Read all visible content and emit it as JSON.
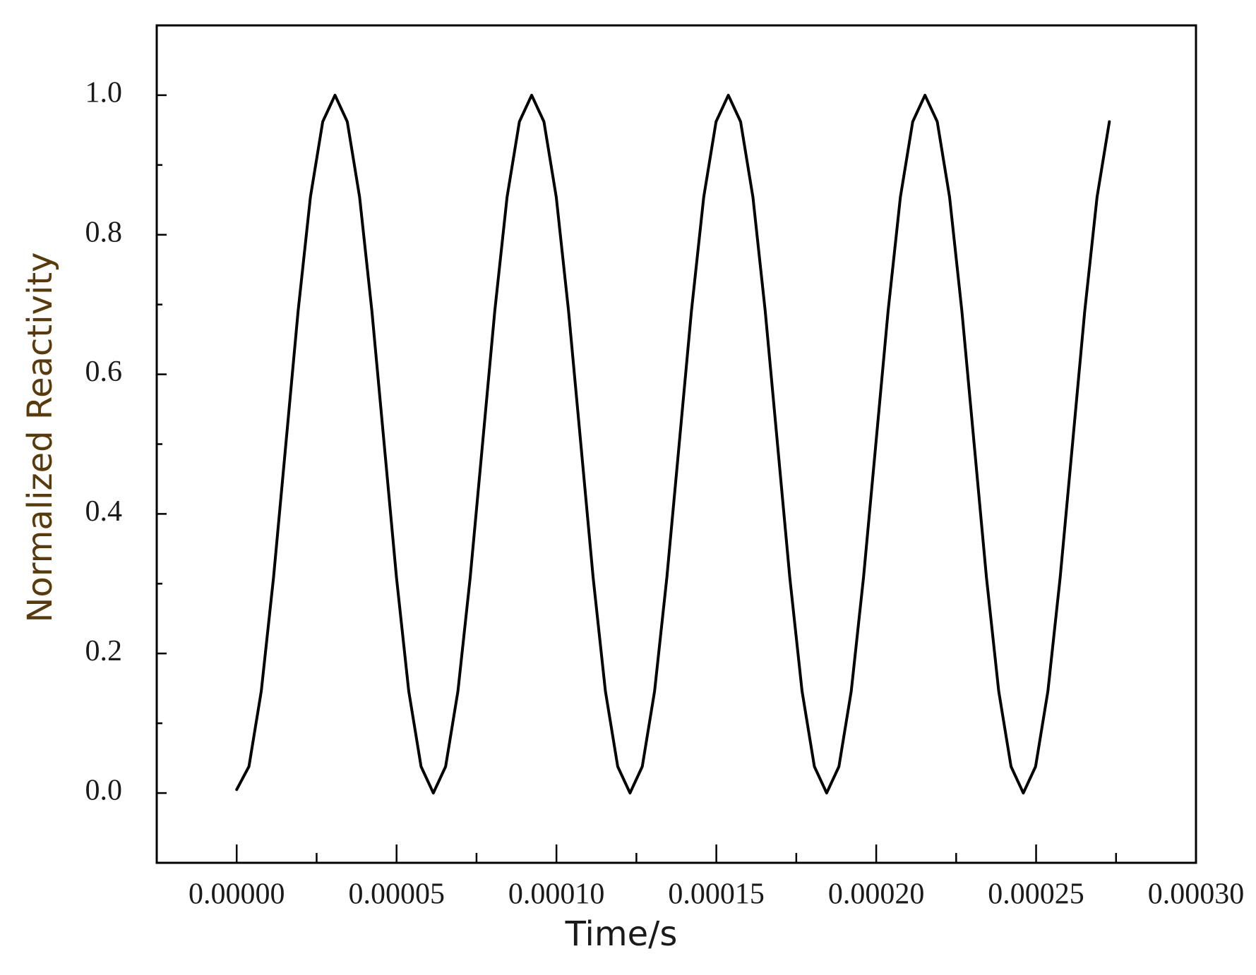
{
  "chart_data": {
    "type": "line",
    "xlabel": "Time/s",
    "ylabel": "Normalized Reactivity",
    "xlim": [
      -2.5e-05,
      0.0003
    ],
    "ylim": [
      -0.1,
      1.1
    ],
    "xticks": [
      {
        "value": 0,
        "label": "0.00000"
      },
      {
        "value": 5e-05,
        "label": "0.00005"
      },
      {
        "value": 0.0001,
        "label": "0.00010"
      },
      {
        "value": 0.00015,
        "label": "0.00015"
      },
      {
        "value": 0.0002,
        "label": "0.00020"
      },
      {
        "value": 0.00025,
        "label": "0.00025"
      },
      {
        "value": 0.0003,
        "label": "0.00030"
      }
    ],
    "minor_xticks": [
      2.5e-05,
      7.5e-05,
      0.000125,
      0.000175,
      0.000225,
      0.000275
    ],
    "yticks": [
      {
        "value": 0,
        "label": "0.0"
      },
      0.2,
      0.4,
      0.6,
      0.8,
      {
        "value": 1,
        "label": "1.0"
      }
    ],
    "minor_yticks": [
      0.1,
      0.3,
      0.5,
      0.7,
      0.9
    ],
    "x": [
      0,
      3.84e-06,
      7.69e-06,
      1.153e-05,
      1.538e-05,
      1.922e-05,
      2.306e-05,
      2.691e-05,
      3.075e-05,
      3.459e-05,
      3.844e-05,
      4.228e-05,
      4.613e-05,
      4.997e-05,
      5.381e-05,
      5.766e-05,
      6.15e-05,
      6.534e-05,
      6.919e-05,
      7.303e-05,
      7.688e-05,
      8.072e-05,
      8.456e-05,
      8.841e-05,
      9.225e-05,
      9.609e-05,
      9.994e-05,
      0.00010378,
      0.00010763,
      0.00011147,
      0.00011531,
      0.00011916,
      0.000123,
      0.00012684,
      0.00013069,
      0.00013453,
      0.00013838,
      0.00014222,
      0.00014606,
      0.00014991,
      0.00015375,
      0.00015759,
      0.00016144,
      0.00016528,
      0.00016913,
      0.00017297,
      0.00017681,
      0.00018066,
      0.0001845,
      0.00018834,
      0.00019219,
      0.00019603,
      0.00019988,
      0.00020372,
      0.00020756,
      0.00021141,
      0.00021525,
      0.00021909,
      0.00022294,
      0.00022678,
      0.00023063,
      0.00023447,
      0.00023831,
      0.00024216,
      0.000246,
      0.00024984,
      0.00025369,
      0.00025753,
      0.00026138,
      0.00026522,
      0.00026906,
      0.00027291
    ],
    "series": [
      {
        "color": "#000000",
        "values": [
          0.005,
          0.038,
          0.146,
          0.309,
          0.5,
          0.691,
          0.854,
          0.962,
          1,
          0.962,
          0.854,
          0.691,
          0.5,
          0.309,
          0.146,
          0.038,
          0,
          0.038,
          0.146,
          0.309,
          0.5,
          0.691,
          0.854,
          0.962,
          1,
          0.962,
          0.854,
          0.691,
          0.5,
          0.309,
          0.146,
          0.038,
          0,
          0.038,
          0.146,
          0.309,
          0.5,
          0.691,
          0.854,
          0.962,
          1,
          0.962,
          0.854,
          0.691,
          0.5,
          0.309,
          0.146,
          0.038,
          0,
          0.038,
          0.146,
          0.309,
          0.5,
          0.691,
          0.854,
          0.962,
          1,
          0.962,
          0.854,
          0.691,
          0.5,
          0.309,
          0.146,
          0.038,
          0,
          0.038,
          0.146,
          0.309,
          0.5,
          0.691,
          0.854,
          0.962
        ]
      }
    ]
  }
}
